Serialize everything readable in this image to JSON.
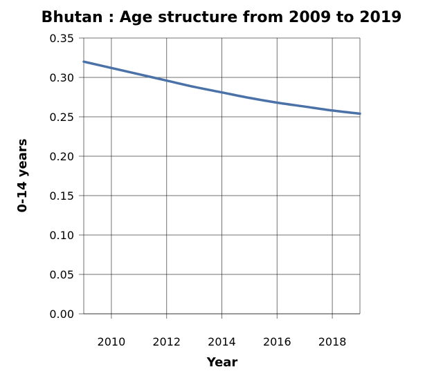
{
  "chart_data": {
    "type": "line",
    "title": "Bhutan : Age structure from 2009 to 2019",
    "xlabel": "Year",
    "ylabel": "0-14 years",
    "xlim": [
      2009,
      2019
    ],
    "ylim": [
      0,
      0.35
    ],
    "xticks": [
      2010,
      2012,
      2014,
      2016,
      2018
    ],
    "yticks": [
      "0.00",
      "0.05",
      "0.10",
      "0.15",
      "0.20",
      "0.25",
      "0.30",
      "0.35"
    ],
    "grid": true,
    "series": [
      {
        "x": [
          2009,
          2010,
          2011,
          2012,
          2013,
          2014,
          2015,
          2016,
          2017,
          2018,
          2019
        ],
        "values": [
          0.32,
          0.312,
          0.304,
          0.296,
          0.288,
          0.281,
          0.274,
          0.268,
          0.263,
          0.258,
          0.254
        ],
        "color": "#4a72a8"
      }
    ]
  }
}
